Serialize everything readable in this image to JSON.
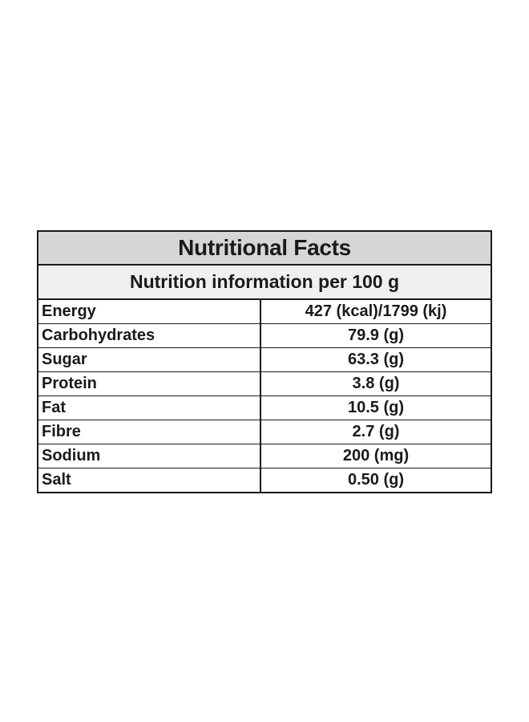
{
  "title": "Nutritional Facts",
  "subtitle": "Nutrition information per 100 g",
  "rows": [
    {
      "name": "Energy",
      "value": "427 (kcal)/1799 (kj)"
    },
    {
      "name": "Carbohydrates",
      "value": "79.9 (g)"
    },
    {
      "name": "Sugar",
      "value": "63.3 (g)"
    },
    {
      "name": "Protein",
      "value": "3.8 (g)"
    },
    {
      "name": "Fat",
      "value": "10.5 (g)"
    },
    {
      "name": "Fibre",
      "value": "2.7 (g)"
    },
    {
      "name": "Sodium",
      "value": "200 (mg)"
    },
    {
      "name": "Salt",
      "value": "0.50 (g)"
    }
  ]
}
